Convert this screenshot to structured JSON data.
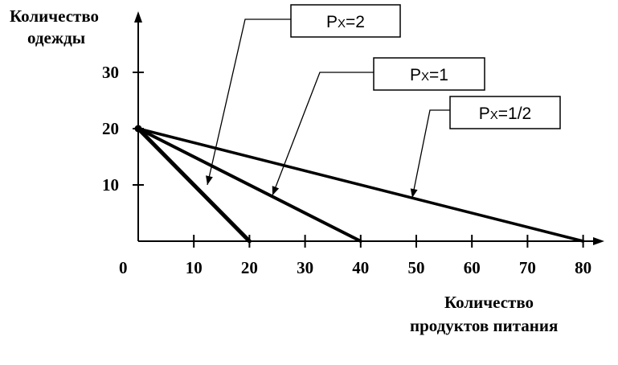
{
  "chart_data": {
    "type": "line",
    "title": "",
    "ylabel_lines": [
      "Количество",
      "одежды"
    ],
    "xlabel_lines": [
      "Количество",
      "продуктов питания"
    ],
    "origin_label": "0",
    "x_ticks": [
      10,
      20,
      30,
      40,
      50,
      60,
      70,
      80
    ],
    "y_ticks": [
      10,
      20,
      30
    ],
    "xlim": [
      0,
      80
    ],
    "ylim": [
      0,
      30
    ],
    "grid": false,
    "series": [
      {
        "label_main": "P",
        "label_sub": "X",
        "label_rest": "=2",
        "x": [
          0,
          20
        ],
        "y": [
          20,
          0
        ]
      },
      {
        "label_main": "P",
        "label_sub": "X",
        "label_rest": "=1",
        "x": [
          0,
          40
        ],
        "y": [
          20,
          0
        ]
      },
      {
        "label_main": "P",
        "label_sub": "X",
        "label_rest": "=1/2",
        "x": [
          0,
          80
        ],
        "y": [
          20,
          0
        ]
      }
    ],
    "line_color": "#000000"
  }
}
